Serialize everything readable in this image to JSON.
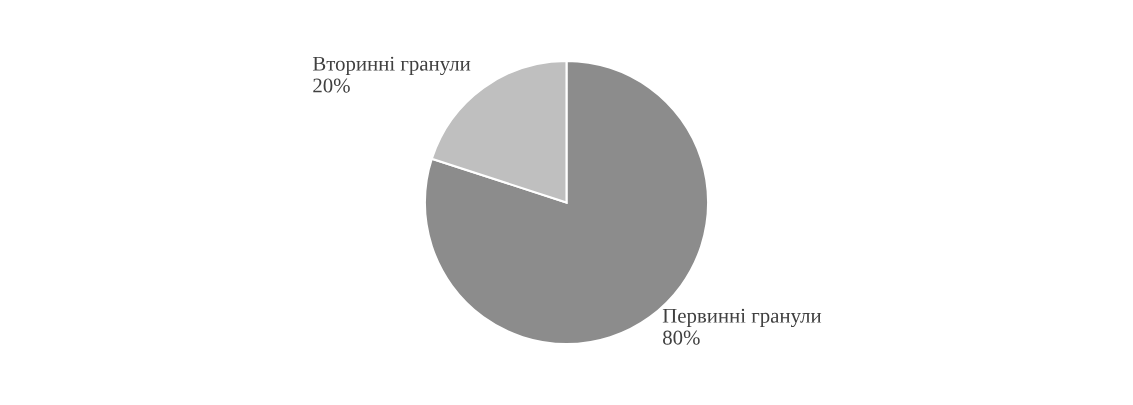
{
  "chart_data": {
    "type": "pie",
    "categories": [
      "Первинні гранули",
      "Вторинні гранули"
    ],
    "values": [
      80,
      20
    ],
    "colors": [
      "#8c8c8c",
      "#bfbfbf"
    ],
    "value_labels": [
      "80%",
      "20%"
    ]
  }
}
